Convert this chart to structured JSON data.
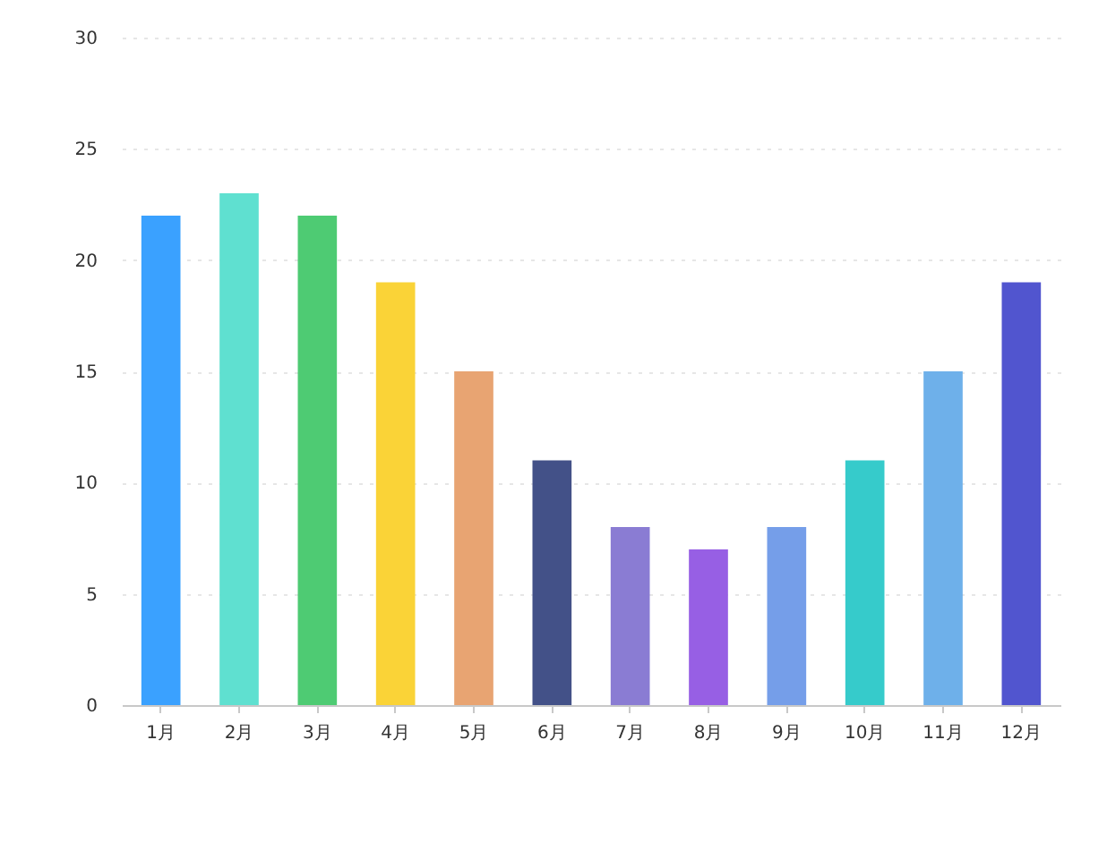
{
  "chart_data": {
    "type": "bar",
    "categories": [
      "1月",
      "2月",
      "3月",
      "4月",
      "5月",
      "6月",
      "7月",
      "8月",
      "9月",
      "10月",
      "11月",
      "12月"
    ],
    "values": [
      22,
      23,
      22,
      19,
      15,
      11,
      8,
      7,
      8,
      11,
      15,
      19
    ],
    "colors": [
      "#3aa1ff",
      "#5fe0d0",
      "#4ecb73",
      "#fad337",
      "#e8a472",
      "#435188",
      "#8a7cd3",
      "#975fe4",
      "#759ee9",
      "#36cbcb",
      "#6eb0ea",
      "#5155cf"
    ],
    "ylim": [
      0,
      30
    ],
    "yticks": [
      0,
      5,
      10,
      15,
      20,
      25,
      30
    ],
    "grid": "y"
  }
}
